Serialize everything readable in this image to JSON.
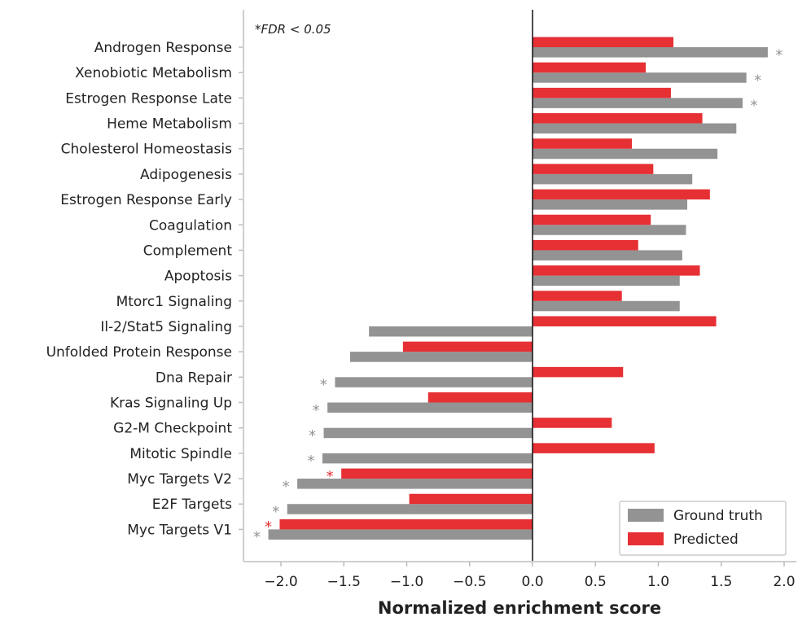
{
  "chart_data": {
    "type": "bar",
    "orientation": "horizontal",
    "title": "",
    "xlabel": "Normalized enrichment score",
    "ylabel": "",
    "xlim": [
      -2.3,
      2.0
    ],
    "xticks": [
      -2.0,
      -1.5,
      -1.0,
      -0.5,
      0.0,
      0.5,
      1.0,
      1.5,
      2.0
    ],
    "xtick_labels": [
      "−2.0",
      "−1.5",
      "−1.0",
      "−0.5",
      "0.0",
      "0.5",
      "1.0",
      "1.5",
      "2.0"
    ],
    "annotation": "*FDR < 0.05",
    "categories": [
      "Androgen Response",
      "Xenobiotic Metabolism",
      "Estrogen Response Late",
      "Heme Metabolism",
      "Cholesterol Homeostasis",
      "Adipogenesis",
      "Estrogen Response Early",
      "Coagulation",
      "Complement",
      "Apoptosis",
      "Mtorc1 Signaling",
      "Il-2/Stat5 Signaling",
      "Unfolded Protein Response",
      "Dna Repair",
      "Kras Signaling Up",
      "G2-M Checkpoint",
      "Mitotic Spindle",
      "Myc Targets V2",
      "E2F Targets",
      "Myc Targets V1"
    ],
    "series": [
      {
        "name": "Ground truth",
        "color": "#939393",
        "values": [
          1.87,
          1.7,
          1.67,
          1.62,
          1.47,
          1.27,
          1.23,
          1.22,
          1.19,
          1.17,
          1.17,
          -1.3,
          -1.45,
          -1.57,
          -1.63,
          -1.66,
          -1.67,
          -1.87,
          -1.95,
          -2.1
        ],
        "significant": [
          true,
          true,
          true,
          false,
          false,
          false,
          false,
          false,
          false,
          false,
          false,
          false,
          false,
          true,
          true,
          true,
          true,
          true,
          true,
          true
        ]
      },
      {
        "name": "Predicted",
        "color": "#e63034",
        "values": [
          1.12,
          0.9,
          1.1,
          1.35,
          0.79,
          0.96,
          1.41,
          0.94,
          0.84,
          1.33,
          0.71,
          1.46,
          -1.03,
          0.72,
          -0.83,
          0.63,
          0.97,
          -1.52,
          -0.98,
          -2.01
        ],
        "significant": [
          false,
          false,
          false,
          false,
          false,
          false,
          false,
          false,
          false,
          false,
          false,
          false,
          false,
          false,
          false,
          false,
          false,
          true,
          false,
          true
        ]
      }
    ],
    "legend": {
      "position": "bottom-right",
      "entries": [
        "Ground truth",
        "Predicted"
      ]
    }
  }
}
